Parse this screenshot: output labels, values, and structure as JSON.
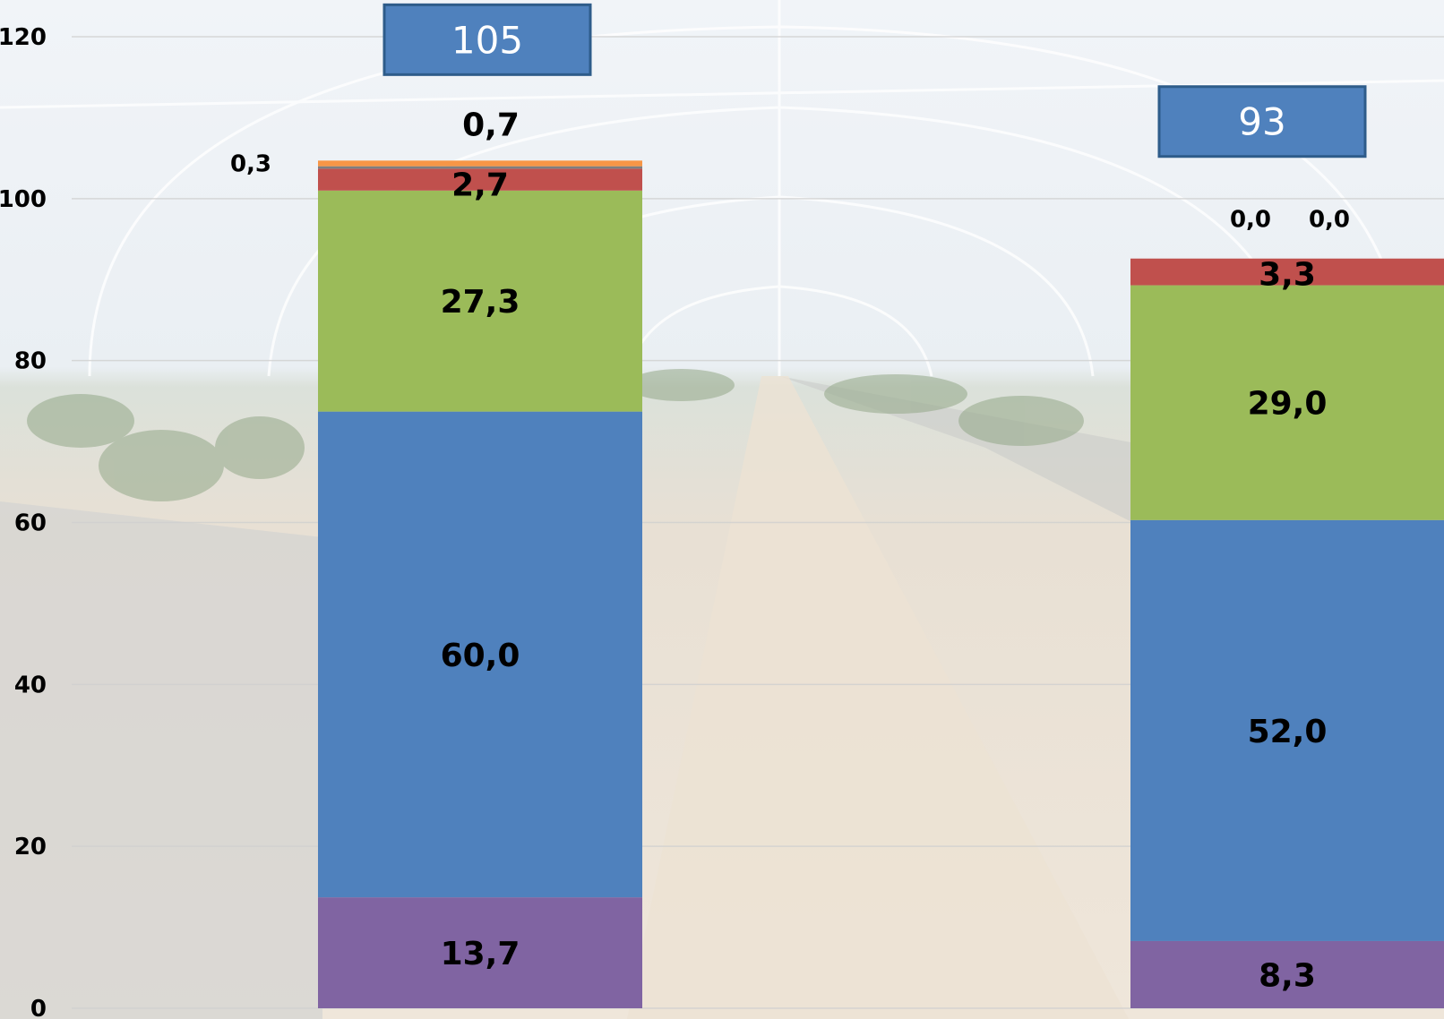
{
  "chart_data": {
    "type": "bar",
    "stacked": true,
    "ylim": [
      0,
      120
    ],
    "yticks": [
      0,
      20,
      40,
      60,
      80,
      100,
      120
    ],
    "grid": true,
    "colors": {
      "purple": "#8064a2",
      "blue": "#4f81bd",
      "green": "#9bbb59",
      "red": "#c0504d",
      "gray": "#7f7f7f",
      "orange": "#f79646",
      "total_box": "#4f81bd",
      "total_box_border": "#2e5c8a"
    },
    "bars": [
      {
        "total": "105",
        "segments": [
          {
            "color": "purple",
            "value": 13.7,
            "label": "13,7",
            "label_style": "inside"
          },
          {
            "color": "blue",
            "value": 60.0,
            "label": "60,0",
            "label_style": "inside"
          },
          {
            "color": "green",
            "value": 27.3,
            "label": "27,3",
            "label_style": "inside"
          },
          {
            "color": "red",
            "value": 2.7,
            "label": "2,7",
            "label_style": "inside"
          },
          {
            "color": "gray",
            "value": 0.3,
            "label": "0,3",
            "label_style": "outside-left"
          },
          {
            "color": "orange",
            "value": 0.7,
            "label": "0,7",
            "label_style": "above"
          }
        ]
      },
      {
        "total": "93",
        "segments": [
          {
            "color": "purple",
            "value": 8.3,
            "label": "8,3",
            "label_style": "inside"
          },
          {
            "color": "blue",
            "value": 52.0,
            "label": "52,0",
            "label_style": "inside"
          },
          {
            "color": "green",
            "value": 29.0,
            "label": "29,0",
            "label_style": "inside"
          },
          {
            "color": "red",
            "value": 3.3,
            "label": "3,3",
            "label_style": "inside"
          },
          {
            "color": "gray",
            "value": 0.0,
            "label": "0,0",
            "label_style": "above-left"
          },
          {
            "color": "orange",
            "value": 0.0,
            "label": "0,0",
            "label_style": "above-right"
          }
        ]
      }
    ]
  }
}
